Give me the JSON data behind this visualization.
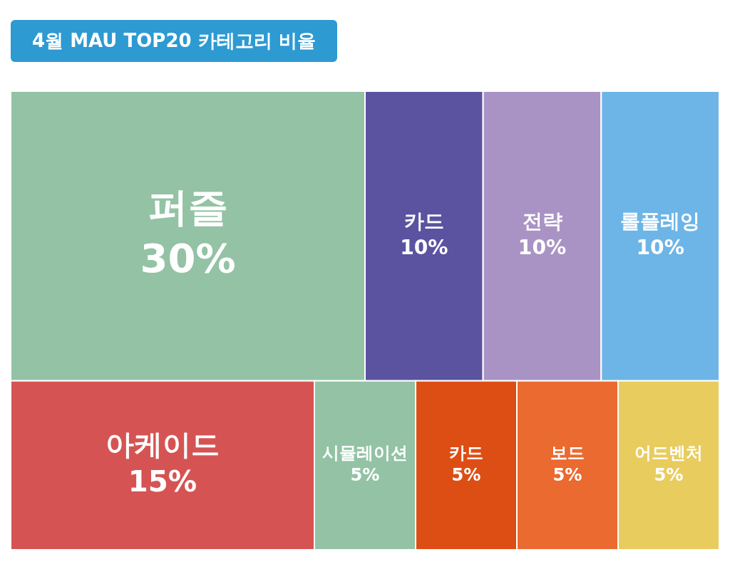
{
  "chart_data": {
    "type": "other",
    "title": "4월 MAU TOP20 카테고리 비율",
    "categories": [
      "퍼즐",
      "카드",
      "전략",
      "롤플레잉",
      "아케이드",
      "시뮬레이션",
      "카드",
      "보드",
      "어드벤처"
    ],
    "values": [
      30,
      10,
      10,
      10,
      15,
      5,
      5,
      5,
      5
    ],
    "value_labels": [
      "30%",
      "10%",
      "10%",
      "10%",
      "15%",
      "5%",
      "5%",
      "5%",
      "5%"
    ],
    "colors": [
      "#93c2a5",
      "#5b53a0",
      "#a993c4",
      "#6db5e6",
      "#d55453",
      "#93c2a5",
      "#dd4e15",
      "#eb6a2f",
      "#e9cc5e"
    ]
  }
}
